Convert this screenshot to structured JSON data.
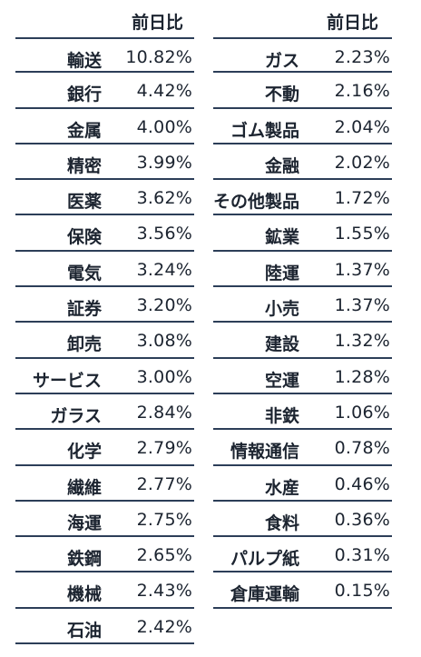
{
  "header": {
    "left_label": "前日比",
    "right_label": "前日比"
  },
  "left_rows": [
    {
      "name": "輸送",
      "value": "10.82%"
    },
    {
      "name": "銀行",
      "value": "4.42%"
    },
    {
      "name": "金属",
      "value": "4.00%"
    },
    {
      "name": "精密",
      "value": "3.99%"
    },
    {
      "name": "医薬",
      "value": "3.62%"
    },
    {
      "name": "保険",
      "value": "3.56%"
    },
    {
      "name": "電気",
      "value": "3.24%"
    },
    {
      "name": "証券",
      "value": "3.20%"
    },
    {
      "name": "卸売",
      "value": "3.08%"
    },
    {
      "name": "サービス",
      "value": "3.00%"
    },
    {
      "name": "ガラス",
      "value": "2.84%"
    },
    {
      "name": "化学",
      "value": "2.79%"
    },
    {
      "name": "繊維",
      "value": "2.77%"
    },
    {
      "name": "海運",
      "value": "2.75%"
    },
    {
      "name": "鉄鋼",
      "value": "2.65%"
    },
    {
      "name": "機械",
      "value": "2.43%"
    },
    {
      "name": "石油",
      "value": "2.42%"
    }
  ],
  "right_rows": [
    {
      "name": "ガス",
      "value": "2.23%"
    },
    {
      "name": "不動",
      "value": "2.16%"
    },
    {
      "name": "ゴム製品",
      "value": "2.04%"
    },
    {
      "name": "金融",
      "value": "2.02%"
    },
    {
      "name": "その他製品",
      "value": "1.72%"
    },
    {
      "name": "鉱業",
      "value": "1.55%"
    },
    {
      "name": "陸運",
      "value": "1.37%"
    },
    {
      "name": "小売",
      "value": "1.37%"
    },
    {
      "name": "建設",
      "value": "1.32%"
    },
    {
      "name": "空運",
      "value": "1.28%"
    },
    {
      "name": "非鉄",
      "value": "1.06%"
    },
    {
      "name": "情報通信",
      "value": "0.78%"
    },
    {
      "name": "水産",
      "value": "0.46%"
    },
    {
      "name": "食料",
      "value": "0.36%"
    },
    {
      "name": "パルプ紙",
      "value": "0.31%"
    },
    {
      "name": "倉庫運輸",
      "value": "0.15%"
    }
  ]
}
